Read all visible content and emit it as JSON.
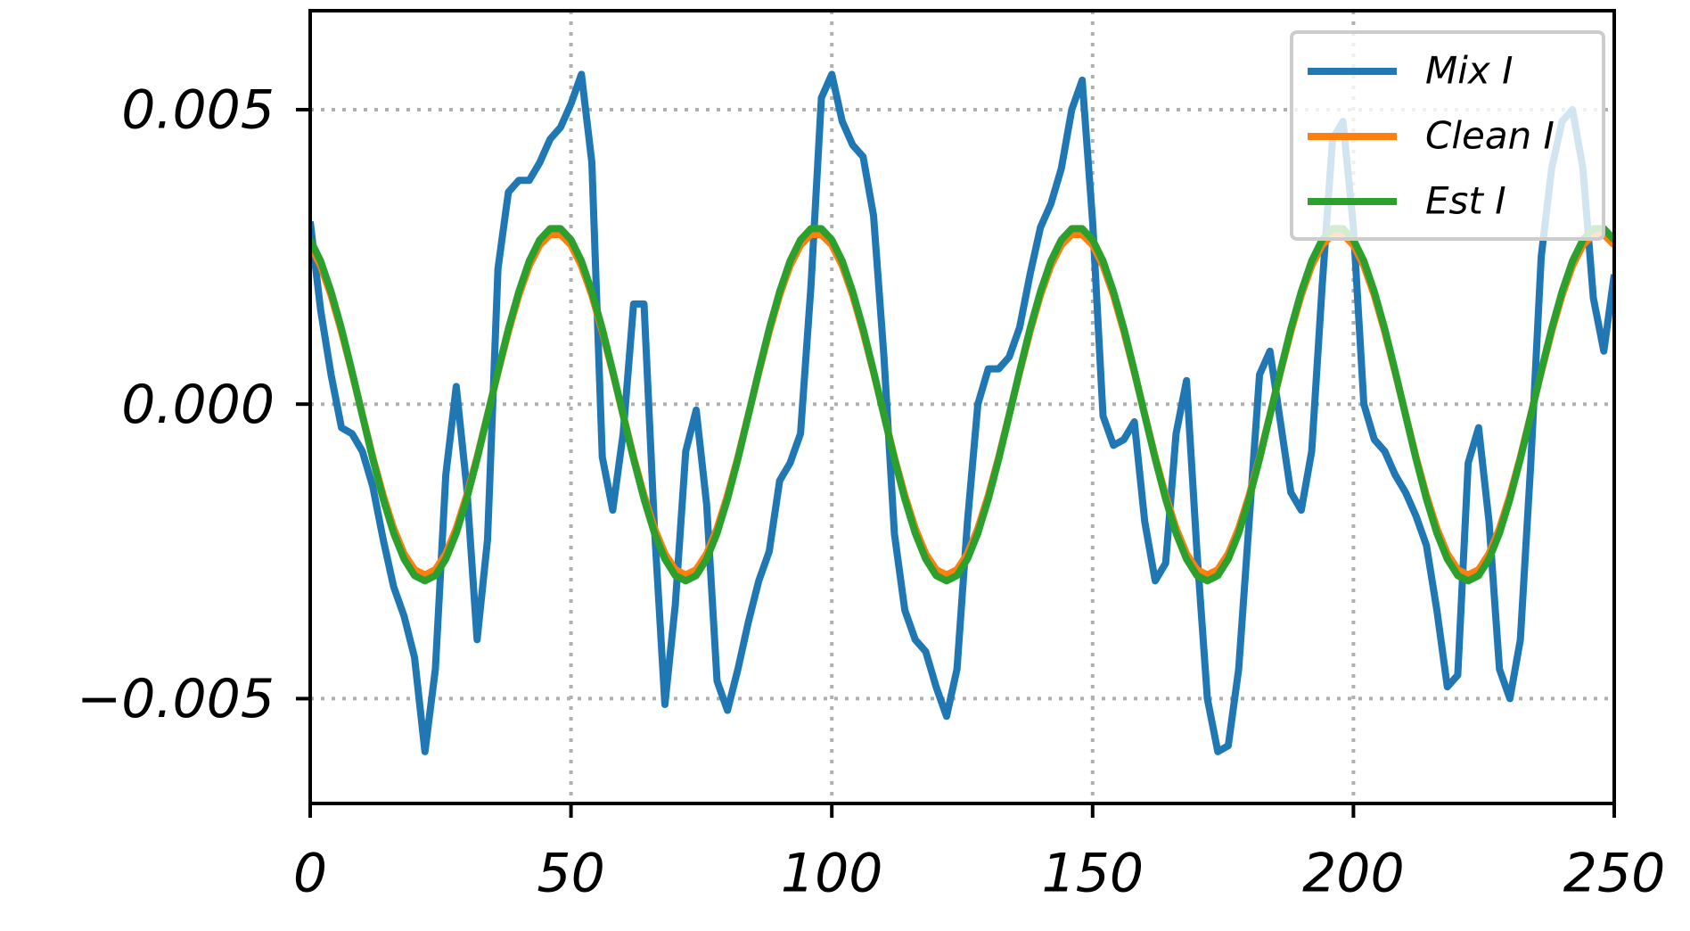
{
  "chart_data": {
    "type": "line",
    "x": [
      0,
      2,
      4,
      6,
      8,
      10,
      12,
      14,
      16,
      18,
      20,
      22,
      24,
      26,
      28,
      30,
      32,
      34,
      36,
      38,
      40,
      42,
      44,
      46,
      48,
      50,
      52,
      54,
      56,
      58,
      60,
      62,
      64,
      66,
      68,
      70,
      72,
      74,
      76,
      78,
      80,
      82,
      84,
      86,
      88,
      90,
      92,
      94,
      96,
      98,
      100,
      102,
      104,
      106,
      108,
      110,
      112,
      114,
      116,
      118,
      120,
      122,
      124,
      126,
      128,
      130,
      132,
      134,
      136,
      138,
      140,
      142,
      144,
      146,
      148,
      150,
      152,
      154,
      156,
      158,
      160,
      162,
      164,
      166,
      168,
      170,
      172,
      174,
      176,
      178,
      180,
      182,
      184,
      186,
      188,
      190,
      192,
      194,
      196,
      198,
      200,
      202,
      204,
      206,
      208,
      210,
      212,
      214,
      216,
      218,
      220,
      222,
      224,
      226,
      228,
      230,
      232,
      234,
      236,
      238,
      240,
      242,
      244,
      246,
      248,
      250
    ],
    "series": [
      {
        "name": "Mix I",
        "color": "#1f77b4",
        "values": [
          0.0031,
          0.0016,
          0.0005,
          -0.0004,
          -0.0005,
          -0.0008,
          -0.0014,
          -0.0023,
          -0.0031,
          -0.0036,
          -0.0043,
          -0.0059,
          -0.0045,
          -0.0012,
          0.0003,
          -0.0014,
          -0.004,
          -0.0023,
          0.0023,
          0.0036,
          0.0038,
          0.0038,
          0.0041,
          0.0045,
          0.0047,
          0.0051,
          0.0056,
          0.0041,
          -0.0009,
          -0.0018,
          -0.0005,
          0.0017,
          0.0017,
          -0.0021,
          -0.0051,
          -0.0034,
          -0.0008,
          -0.0001,
          -0.0017,
          -0.0047,
          -0.0052,
          -0.0045,
          -0.0037,
          -0.003,
          -0.0025,
          -0.0013,
          -0.001,
          -0.0005,
          0.002,
          0.0052,
          0.0056,
          0.0048,
          0.0044,
          0.0042,
          0.0032,
          0.0008,
          -0.0022,
          -0.0035,
          -0.004,
          -0.0042,
          -0.0048,
          -0.0053,
          -0.0045,
          -0.002,
          0,
          0.0006,
          0.0006,
          0.0008,
          0.0013,
          0.0022,
          0.003,
          0.0034,
          0.004,
          0.005,
          0.0055,
          0.0031,
          -0.0002,
          -0.0007,
          -0.0006,
          -0.0003,
          -0.002,
          -0.003,
          -0.0027,
          -0.0005,
          0.0004,
          -0.0025,
          -0.005,
          -0.0059,
          -0.0058,
          -0.0045,
          -0.002,
          0.0005,
          0.0009,
          -0.0003,
          -0.0015,
          -0.0018,
          -0.0008,
          0.002,
          0.0045,
          0.0048,
          0.003,
          0,
          -0.0006,
          -0.0008,
          -0.0012,
          -0.0015,
          -0.0019,
          -0.0024,
          -0.0035,
          -0.0048,
          -0.0046,
          -0.001,
          -0.0004,
          -0.002,
          -0.0045,
          -0.005,
          -0.004,
          -0.001,
          0.0025,
          0.004,
          0.0048,
          0.005,
          0.004,
          0.0018,
          0.0009,
          0.0022
        ]
      },
      {
        "name": "Clean I",
        "color": "#ff7f0e",
        "values": [
          0.0027,
          0.00235,
          0.00185,
          0.00123,
          0.00054,
          -0.00018,
          -0.0009,
          -0.00155,
          -0.00211,
          -0.00254,
          -0.00281,
          -0.0029,
          -0.00281,
          -0.00254,
          -0.00211,
          -0.00155,
          -0.0009,
          -0.00018,
          0.00054,
          0.00123,
          0.00185,
          0.00235,
          0.0027,
          0.00288,
          0.00288,
          0.0027,
          0.00235,
          0.00185,
          0.00123,
          0.00054,
          -0.00018,
          -0.0009,
          -0.00155,
          -0.00211,
          -0.00254,
          -0.00281,
          -0.0029,
          -0.00281,
          -0.00254,
          -0.00211,
          -0.00155,
          -0.0009,
          -0.00018,
          0.00054,
          0.00123,
          0.00185,
          0.00235,
          0.0027,
          0.00288,
          0.00288,
          0.0027,
          0.00235,
          0.00185,
          0.00123,
          0.00054,
          -0.00018,
          -0.0009,
          -0.00155,
          -0.00211,
          -0.00254,
          -0.00281,
          -0.0029,
          -0.00281,
          -0.00254,
          -0.00211,
          -0.00155,
          -0.0009,
          -0.00018,
          0.00054,
          0.00123,
          0.00185,
          0.00235,
          0.0027,
          0.00288,
          0.00288,
          0.0027,
          0.00235,
          0.00185,
          0.00123,
          0.00054,
          -0.00018,
          -0.0009,
          -0.00155,
          -0.00211,
          -0.00254,
          -0.00281,
          -0.0029,
          -0.00281,
          -0.00254,
          -0.00211,
          -0.00155,
          -0.0009,
          -0.00018,
          0.00054,
          0.00123,
          0.00185,
          0.00235,
          0.0027,
          0.00288,
          0.00288,
          0.0027,
          0.00235,
          0.00185,
          0.00123,
          0.00054,
          -0.00018,
          -0.0009,
          -0.00155,
          -0.00211,
          -0.00254,
          -0.00281,
          -0.0029,
          -0.00281,
          -0.00254,
          -0.00211,
          -0.00155,
          -0.0009,
          -0.00018,
          0.00054,
          0.00123,
          0.00185,
          0.00235,
          0.0027,
          0.00288,
          0.00288,
          0.0027
        ]
      },
      {
        "name": "Est I",
        "color": "#2ca02c",
        "values": [
          0.00279,
          0.00243,
          0.00191,
          0.00128,
          0.00056,
          -0.00019,
          -0.00093,
          -0.00161,
          -0.00219,
          -0.00263,
          -0.00291,
          -0.003,
          -0.00291,
          -0.00263,
          -0.00219,
          -0.00161,
          -0.00093,
          -0.00019,
          0.00056,
          0.00128,
          0.00191,
          0.00243,
          0.00279,
          0.00298,
          0.00298,
          0.00279,
          0.00243,
          0.00191,
          0.00128,
          0.00056,
          -0.00019,
          -0.00093,
          -0.00161,
          -0.00219,
          -0.00263,
          -0.00291,
          -0.003,
          -0.00291,
          -0.00263,
          -0.00219,
          -0.00161,
          -0.00093,
          -0.00019,
          0.00056,
          0.00128,
          0.00191,
          0.00243,
          0.00279,
          0.00298,
          0.00298,
          0.00279,
          0.00243,
          0.00191,
          0.00128,
          0.00056,
          -0.00019,
          -0.00093,
          -0.00161,
          -0.00219,
          -0.00263,
          -0.00291,
          -0.003,
          -0.00291,
          -0.00263,
          -0.00219,
          -0.00161,
          -0.00093,
          -0.00019,
          0.00056,
          0.00128,
          0.00191,
          0.00243,
          0.00279,
          0.00298,
          0.00298,
          0.00279,
          0.00243,
          0.00191,
          0.00128,
          0.00056,
          -0.00019,
          -0.00093,
          -0.00161,
          -0.00219,
          -0.00263,
          -0.00291,
          -0.003,
          -0.00291,
          -0.00263,
          -0.00219,
          -0.00161,
          -0.00093,
          -0.00019,
          0.00056,
          0.00128,
          0.00191,
          0.00243,
          0.00279,
          0.00298,
          0.00298,
          0.00279,
          0.00243,
          0.00191,
          0.00128,
          0.00056,
          -0.00019,
          -0.00093,
          -0.00161,
          -0.00219,
          -0.00263,
          -0.00291,
          -0.003,
          -0.00291,
          -0.00263,
          -0.00219,
          -0.00161,
          -0.00093,
          -0.00019,
          0.00056,
          0.00128,
          0.00191,
          0.00243,
          0.00279,
          0.00298,
          0.00298,
          0.00279
        ]
      }
    ],
    "xlim": [
      0,
      250
    ],
    "xticks": [
      0,
      50,
      100,
      150,
      200,
      250
    ],
    "ylim": [
      -0.00678,
      0.00668
    ],
    "yticks": [
      {
        "value": -0.005,
        "label": "−0.005"
      },
      {
        "value": 0,
        "label": "0.000"
      },
      0.005
    ],
    "grid": true,
    "legend": "upper right"
  }
}
